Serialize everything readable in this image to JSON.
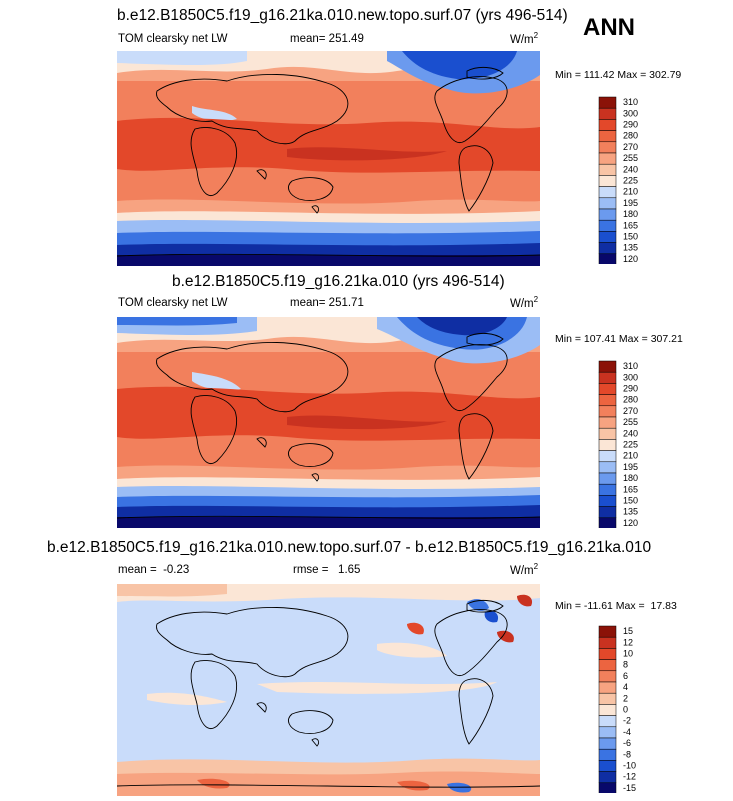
{
  "season": "ANN",
  "colors": {
    "lw_palette": [
      "#08086a",
      "#0f2ea3",
      "#1a4fcf",
      "#3a73e2",
      "#6b9aee",
      "#9bbdf5",
      "#c9dcfa",
      "#fbe6d6",
      "#f8c4a6",
      "#f7a381",
      "#f2805c",
      "#ec6440",
      "#e3482a",
      "#c93220",
      "#8b1208"
    ],
    "diff_palette": [
      "#08086a",
      "#0f2ea3",
      "#1a4fcf",
      "#3a73e2",
      "#6b9aee",
      "#9bbdf5",
      "#c9dcfa",
      "#fbe6d6",
      "#f8c4a6",
      "#f7a381",
      "#f2805c",
      "#ec6440",
      "#e3482a",
      "#c93220",
      "#8b1208"
    ],
    "ocean_base": "#f08a66",
    "land_line": "#000000"
  },
  "panels": [
    {
      "title": "b.e12.B1850C5.f19_g16.21ka.010.new.topo.surf.07 (yrs 496-514)",
      "variable": "TOM clearsky net LW",
      "mean_text": "mean= 251.49",
      "units": "W/m",
      "units_sup": "2",
      "minmax": "Min = 111.42 Max = 302.79"
    },
    {
      "title": "b.e12.B1850C5.f19_g16.21ka.010 (yrs 496-514)",
      "variable": "TOM clearsky net LW",
      "mean_text": "mean= 251.71",
      "units": "W/m",
      "units_sup": "2",
      "minmax": "Min = 107.41 Max = 307.21"
    },
    {
      "title": "b.e12.B1850C5.f19_g16.21ka.010.new.topo.surf.07 - b.e12.B1850C5.f19_g16.21ka.010",
      "variable": "",
      "mean_text": "mean =  -0.23",
      "rmse_text": "rmse =   1.65",
      "units": "W/m",
      "units_sup": "2",
      "minmax": "Min = -11.61 Max =  17.83"
    }
  ],
  "chart_data": [
    {
      "type": "heatmap",
      "title": "b.e12.B1850C5.f19_g16.21ka.010.new.topo.surf.07 (yrs 496-514)",
      "subtitle": "TOM clearsky net LW",
      "mean": 251.49,
      "min": 111.42,
      "max": 302.79,
      "units": "W/m2",
      "colorbar_levels": [
        "310",
        "300",
        "290",
        "280",
        "270",
        "255",
        "240",
        "225",
        "210",
        "195",
        "180",
        "165",
        "150",
        "135",
        "120"
      ]
    },
    {
      "type": "heatmap",
      "title": "b.e12.B1850C5.f19_g16.21ka.010 (yrs 496-514)",
      "subtitle": "TOM clearsky net LW",
      "mean": 251.71,
      "min": 107.41,
      "max": 307.21,
      "units": "W/m2",
      "colorbar_levels": [
        "310",
        "300",
        "290",
        "280",
        "270",
        "255",
        "240",
        "225",
        "210",
        "195",
        "180",
        "165",
        "150",
        "135",
        "120"
      ]
    },
    {
      "type": "heatmap",
      "title": "b.e12.B1850C5.f19_g16.21ka.010.new.topo.surf.07 - b.e12.B1850C5.f19_g16.21ka.010",
      "mean": -0.23,
      "rmse": 1.65,
      "min": -11.61,
      "max": 17.83,
      "units": "W/m2",
      "colorbar_levels": [
        "15",
        "12",
        "10",
        "8",
        "6",
        "4",
        "2",
        "0",
        "-2",
        "-4",
        "-6",
        "-8",
        "-10",
        "-12",
        "-15"
      ]
    }
  ]
}
